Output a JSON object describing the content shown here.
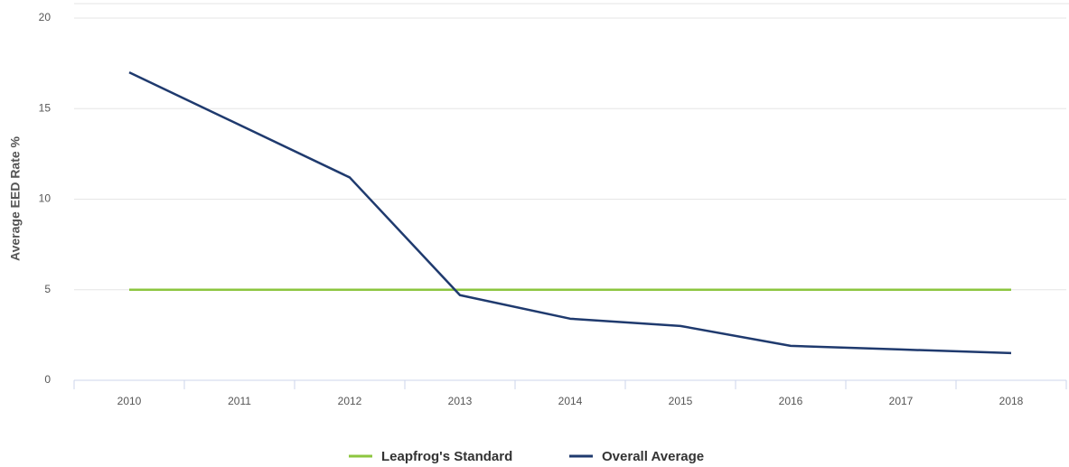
{
  "chart_data": {
    "type": "line",
    "y_label": "Average EED Rate %",
    "categories": [
      "2010",
      "2011",
      "2012",
      "2013",
      "2014",
      "2015",
      "2016",
      "2017",
      "2018"
    ],
    "series": [
      {
        "name": "Leapfrog's Standard",
        "color": "#8cc63f",
        "values": [
          5,
          5,
          5,
          5,
          5,
          5,
          5,
          5,
          5
        ]
      },
      {
        "name": "Overall Average",
        "color": "#1f3a6e",
        "values": [
          17,
          14.1,
          11.2,
          4.7,
          3.4,
          3.0,
          1.9,
          1.7,
          1.5
        ]
      }
    ],
    "ylim": [
      0,
      20
    ],
    "yticks": [
      0,
      5,
      10,
      15,
      20
    ],
    "grid": true,
    "legend": "bottom"
  }
}
